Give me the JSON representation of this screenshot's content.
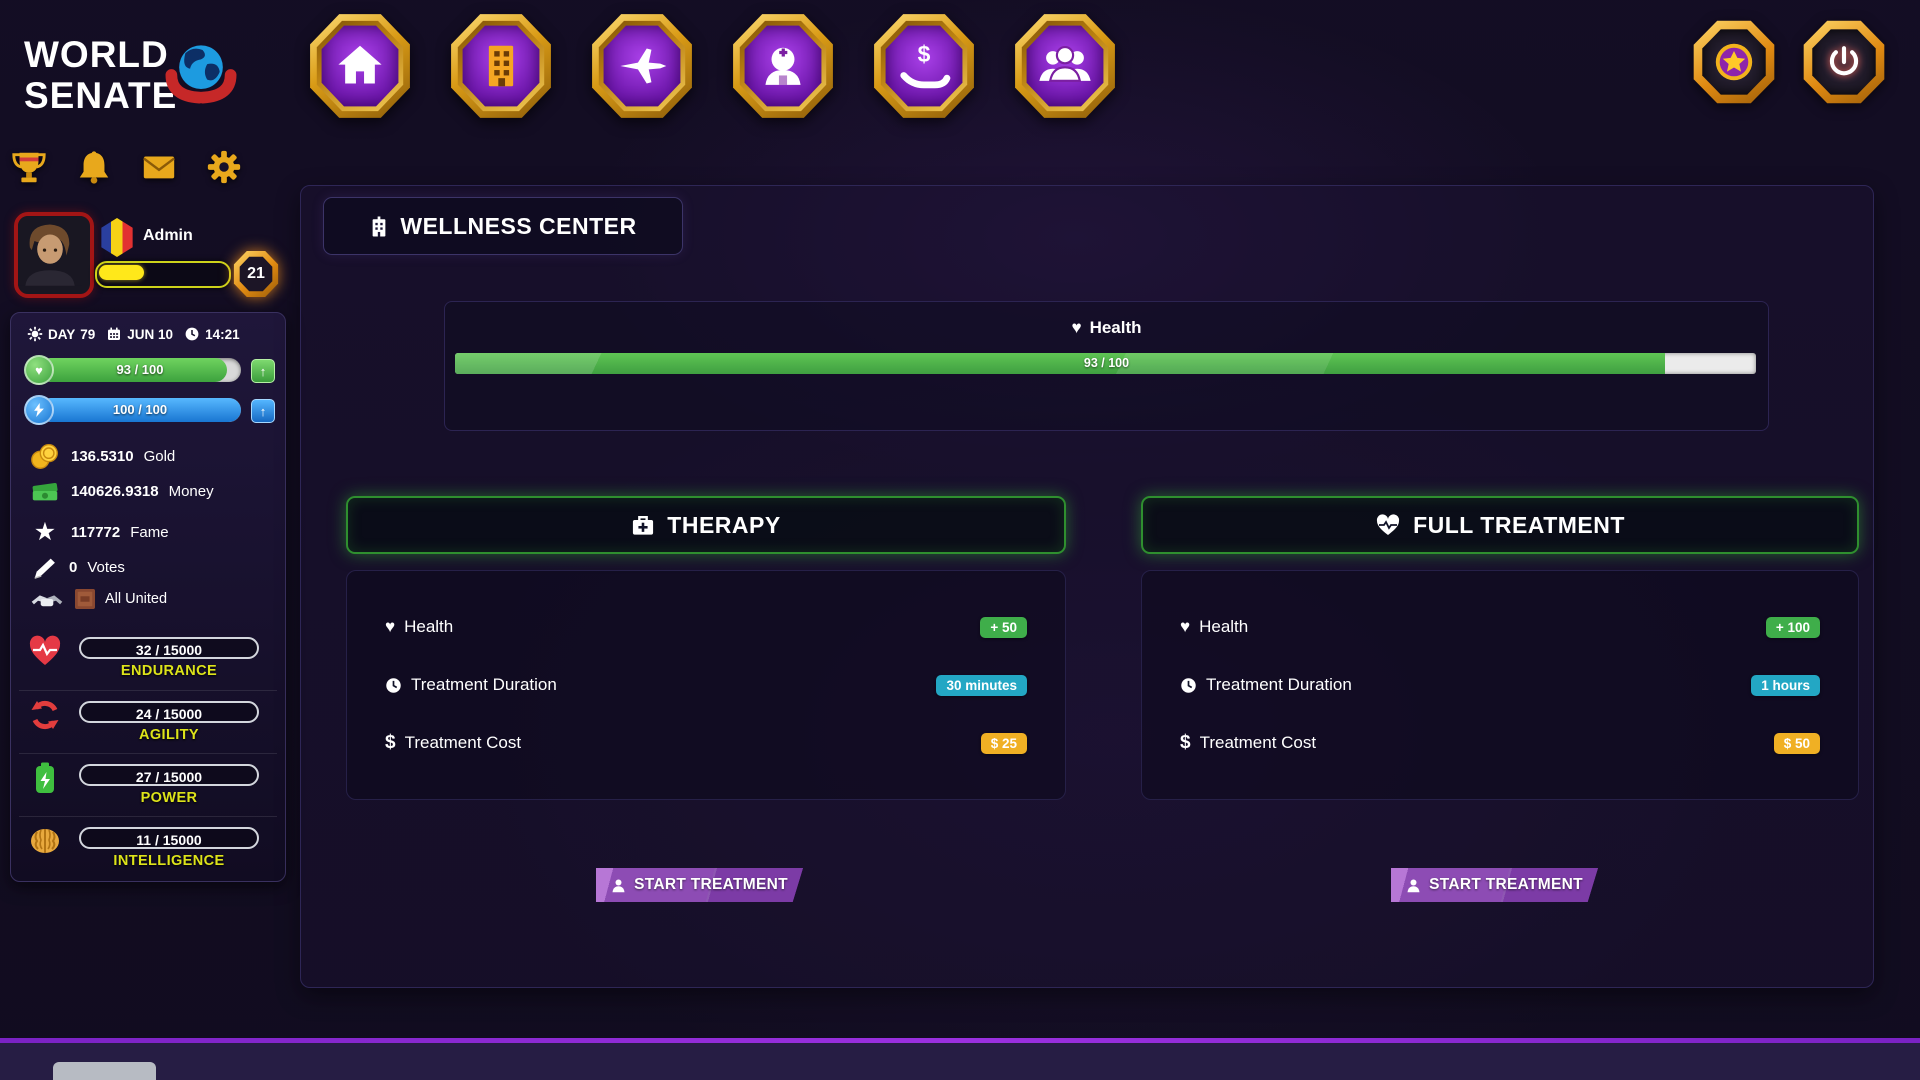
{
  "brand": {
    "line1": "WORLD",
    "line2": "SENATE"
  },
  "nav": {
    "icons": [
      "home",
      "buildings",
      "fighter-jet",
      "doctor",
      "money-hand",
      "community"
    ]
  },
  "header_right": {
    "icons": [
      "star-rank",
      "power"
    ]
  },
  "quickbar": {
    "icons": [
      "trophy",
      "bell",
      "mail",
      "settings"
    ]
  },
  "player": {
    "name": "Admin",
    "level": "21",
    "xp_percent": 34
  },
  "status": {
    "day_label": "DAY",
    "day_value": "79",
    "date": "JUN 10",
    "time": "14:21"
  },
  "vitals": {
    "health": {
      "value": "93 / 100",
      "percent": 93
    },
    "energy": {
      "value": "100 / 100",
      "percent": 100
    }
  },
  "resources": {
    "gold": {
      "value": "136.5310",
      "label": "Gold"
    },
    "money": {
      "value": "140626.9318",
      "label": "Money"
    },
    "fame": {
      "value": "117772",
      "label": "Fame"
    },
    "votes": {
      "value": "0",
      "label": "Votes"
    },
    "alliance": {
      "label": "All United"
    }
  },
  "stats": {
    "endurance": {
      "value": "32 / 15000",
      "label": "ENDURANCE"
    },
    "agility": {
      "value": "24 / 15000",
      "label": "AGILITY"
    },
    "power": {
      "value": "27 / 15000",
      "label": "POWER"
    },
    "intelligence": {
      "value": "11 / 15000",
      "label": "INTELLIGENCE"
    }
  },
  "main": {
    "title": "WELLNESS CENTER",
    "health_panel": {
      "title": "Health",
      "value": "93 / 100",
      "percent": 93
    },
    "therapy": {
      "title": "THERAPY",
      "rows": [
        {
          "label": "Health",
          "value": "+ 50"
        },
        {
          "label": "Treatment Duration",
          "value": "30 minutes"
        },
        {
          "label": "Treatment Cost",
          "value": "$ 25"
        }
      ],
      "button": "START TREATMENT"
    },
    "full_treatment": {
      "title": "FULL TREATMENT",
      "rows": [
        {
          "label": "Health",
          "value": "+ 100"
        },
        {
          "label": "Treatment Duration",
          "value": "1 hours"
        },
        {
          "label": "Treatment Cost",
          "value": "$ 50"
        }
      ],
      "button": "START TREATMENT"
    }
  },
  "colors": {
    "health_green": "#45b04a",
    "energy_blue": "#2b8fe8",
    "badge_green": "#3fae4a",
    "badge_teal": "#23a7c4",
    "badge_gold": "#f0b024",
    "xp_yellow": "#ffe81a",
    "stat_label_yellow": "#dde31a",
    "gold_frame": "#d99b16",
    "accent_purple": "#8e44ad"
  }
}
